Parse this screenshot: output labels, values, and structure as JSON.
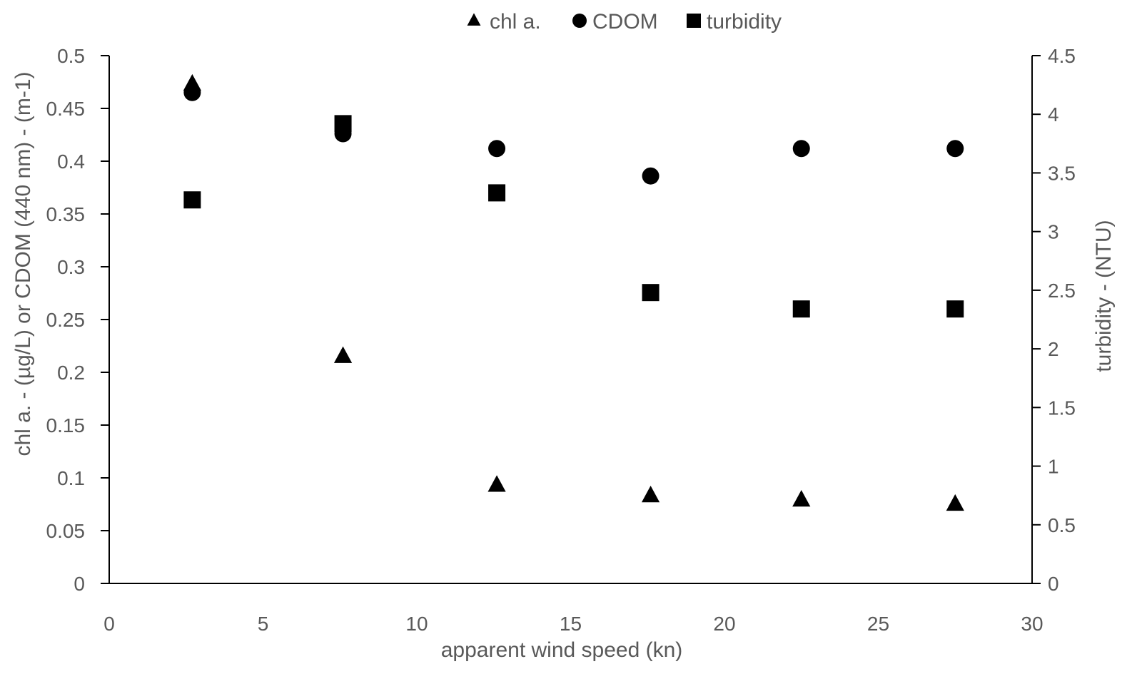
{
  "chart_data": {
    "type": "scatter",
    "title": "",
    "xlabel": "apparent wind speed (kn)",
    "ylabel_left": "chl a. - (µg/L) or CDOM (440 nm) - (m-1)",
    "ylabel_right": "turbidity - (NTU)",
    "xlim": [
      0,
      30
    ],
    "ylim_left": [
      0,
      0.5
    ],
    "ylim_right": [
      0,
      4.5
    ],
    "x_ticks": [
      "0",
      "5",
      "10",
      "15",
      "20",
      "25",
      "30"
    ],
    "y_left_ticks": [
      "0",
      "0.05",
      "0.1",
      "0.15",
      "0.2",
      "0.25",
      "0.3",
      "0.35",
      "0.4",
      "0.45",
      "0.5"
    ],
    "y_right_ticks": [
      "0",
      "0.5",
      "1",
      "1.5",
      "2",
      "2.5",
      "3",
      "3.5",
      "4",
      "4.5"
    ],
    "grid": false,
    "legend_position": "top-center",
    "series": [
      {
        "name": "chl a.",
        "marker": "triangle",
        "axis": "left",
        "color": "#000000",
        "x": [
          2.7,
          7.6,
          12.6,
          17.6,
          22.5,
          27.5
        ],
        "y": [
          0.473,
          0.215,
          0.093,
          0.083,
          0.079,
          0.075
        ]
      },
      {
        "name": "CDOM",
        "marker": "circle",
        "axis": "left",
        "color": "#000000",
        "x": [
          2.7,
          7.6,
          12.6,
          17.6,
          22.5,
          27.5
        ],
        "y": [
          0.465,
          0.426,
          0.412,
          0.386,
          0.412,
          0.412
        ]
      },
      {
        "name": "turbidity",
        "marker": "square",
        "axis": "right",
        "color": "#000000",
        "x": [
          2.7,
          7.6,
          12.6,
          17.6,
          22.5,
          27.5
        ],
        "y": [
          3.27,
          3.92,
          3.33,
          2.48,
          2.34,
          2.34
        ]
      }
    ]
  }
}
